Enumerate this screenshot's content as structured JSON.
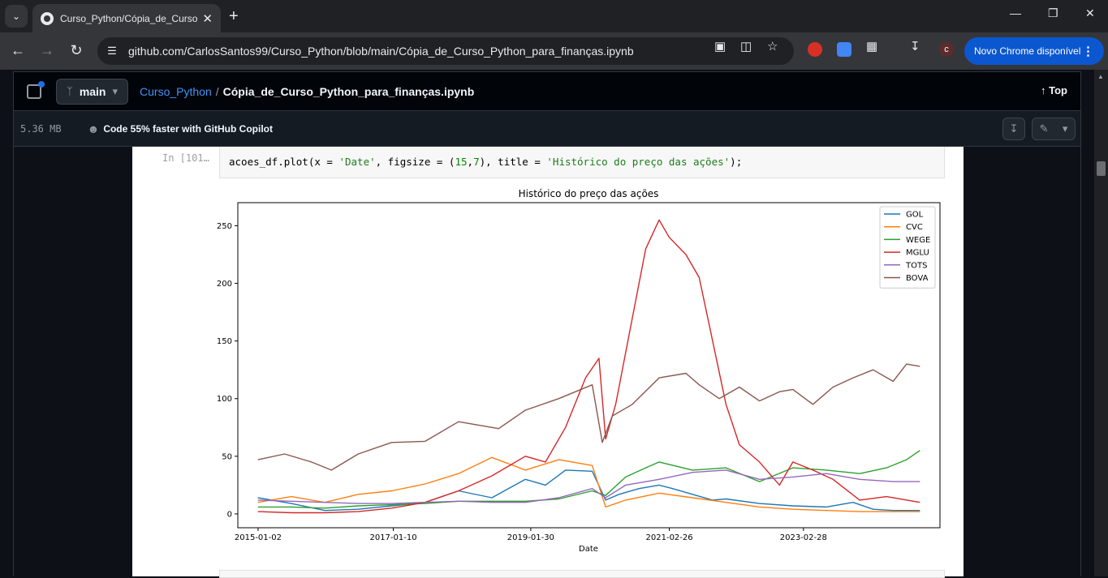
{
  "browser": {
    "tab_title": "Curso_Python/Cópia_de_Curso...",
    "url": "github.com/CarlosSantos99/Curso_Python/blob/main/Cópia_de_Curso_Python_para_finanças.ipynb",
    "update_button": "Novo Chrome disponível",
    "profile_initial": "c"
  },
  "github": {
    "branch": "main",
    "repo": "Curso_Python",
    "separator": "/",
    "filename": "Cópia_de_Curso_Python_para_finanças.ipynb",
    "top_label": "Top",
    "file_size": "5.36 MB",
    "copilot_promo": "Code 55% faster with GitHub Copilot"
  },
  "notebook": {
    "prompt": "In [101…",
    "code": {
      "part1": "acoes_df.plot(x = ",
      "str1": "'Date'",
      "part2": ", figsize = (",
      "num1": "15",
      "part3": ",",
      "num2": "7",
      "part4": "), title = ",
      "str2": "'Histórico do preço das ações'",
      "part5": ");"
    }
  },
  "chart_data": {
    "type": "line",
    "title": "Histórico do preço das ações",
    "xlabel": "Date",
    "ylabel": "",
    "xticks": [
      "2015-01-02",
      "2017-01-10",
      "2019-01-30",
      "2021-02-26",
      "2023-02-28"
    ],
    "yticks": [
      0,
      50,
      100,
      150,
      200,
      250
    ],
    "ylim": [
      -12,
      270
    ],
    "xlim": [
      2014.7,
      2025.2
    ],
    "legend_position": "top-right",
    "grid": false,
    "series": [
      {
        "name": "GOL",
        "color": "#1f77b4",
        "x": [
          2015.0,
          2015.5,
          2016.0,
          2016.5,
          2017.0,
          2017.5,
          2018.0,
          2018.5,
          2019.0,
          2019.3,
          2019.6,
          2020.0,
          2020.2,
          2020.4,
          2020.7,
          2021.0,
          2021.2,
          2021.5,
          2021.8,
          2022.0,
          2022.5,
          2023.0,
          2023.5,
          2023.9,
          2024.2,
          2024.5,
          2024.9
        ],
        "y": [
          14,
          9,
          3,
          4,
          7,
          10,
          20,
          14,
          30,
          25,
          38,
          37,
          12,
          17,
          22,
          25,
          22,
          17,
          12,
          13,
          9,
          7,
          6,
          10,
          4,
          3,
          3
        ]
      },
      {
        "name": "CVC",
        "color": "#ff7f0e",
        "x": [
          2015.0,
          2015.5,
          2016.0,
          2016.5,
          2017.0,
          2017.5,
          2018.0,
          2018.5,
          2019.0,
          2019.5,
          2020.0,
          2020.2,
          2020.5,
          2021.0,
          2021.5,
          2022.0,
          2022.5,
          2023.0,
          2023.5,
          2024.0,
          2024.5,
          2024.9
        ],
        "y": [
          10,
          15,
          10,
          17,
          20,
          26,
          35,
          49,
          38,
          47,
          42,
          6,
          12,
          18,
          14,
          10,
          6,
          4,
          3,
          2,
          2,
          2
        ]
      },
      {
        "name": "WEGE",
        "color": "#2ca02c",
        "x": [
          2015.0,
          2015.5,
          2016.0,
          2016.5,
          2017.0,
          2017.5,
          2018.0,
          2018.5,
          2019.0,
          2019.5,
          2020.0,
          2020.2,
          2020.5,
          2020.8,
          2021.0,
          2021.5,
          2022.0,
          2022.5,
          2023.0,
          2023.5,
          2024.0,
          2024.4,
          2024.7,
          2024.9
        ],
        "y": [
          6,
          6,
          5,
          7,
          8,
          9,
          11,
          11,
          11,
          13,
          20,
          16,
          32,
          40,
          45,
          38,
          40,
          28,
          40,
          38,
          35,
          40,
          47,
          55
        ]
      },
      {
        "name": "MGLU",
        "color": "#d62728",
        "x": [
          2015.0,
          2015.5,
          2016.0,
          2016.5,
          2017.0,
          2017.5,
          2018.0,
          2018.5,
          2019.0,
          2019.3,
          2019.6,
          2019.9,
          2020.1,
          2020.2,
          2020.35,
          2020.6,
          2020.8,
          2021.0,
          2021.15,
          2021.4,
          2021.6,
          2021.8,
          2022.0,
          2022.2,
          2022.5,
          2022.8,
          2023.0,
          2023.3,
          2023.6,
          2024.0,
          2024.4,
          2024.9
        ],
        "y": [
          2,
          1,
          1,
          2,
          5,
          10,
          20,
          33,
          50,
          45,
          75,
          118,
          135,
          65,
          95,
          170,
          230,
          255,
          240,
          225,
          205,
          150,
          95,
          60,
          45,
          25,
          45,
          38,
          30,
          12,
          15,
          10
        ]
      },
      {
        "name": "TOTS",
        "color": "#9467bd",
        "x": [
          2015.0,
          2015.5,
          2016.0,
          2016.5,
          2017.0,
          2017.5,
          2018.0,
          2018.5,
          2019.0,
          2019.5,
          2020.0,
          2020.2,
          2020.5,
          2021.0,
          2021.5,
          2022.0,
          2022.5,
          2023.0,
          2023.5,
          2024.0,
          2024.5,
          2024.9
        ],
        "y": [
          12,
          11,
          10,
          9,
          9,
          10,
          11,
          10,
          10,
          14,
          22,
          14,
          25,
          30,
          36,
          38,
          30,
          32,
          35,
          30,
          28,
          28
        ]
      },
      {
        "name": "BOVA",
        "color": "#8c564b",
        "x": [
          2015.0,
          2015.4,
          2015.8,
          2016.1,
          2016.5,
          2017.0,
          2017.5,
          2018.0,
          2018.3,
          2018.6,
          2019.0,
          2019.5,
          2020.0,
          2020.15,
          2020.3,
          2020.6,
          2021.0,
          2021.4,
          2021.6,
          2021.9,
          2022.2,
          2022.5,
          2022.8,
          2023.0,
          2023.3,
          2023.6,
          2023.9,
          2024.2,
          2024.5,
          2024.7,
          2024.9
        ],
        "y": [
          47,
          52,
          45,
          38,
          52,
          62,
          63,
          80,
          77,
          74,
          90,
          100,
          112,
          62,
          85,
          95,
          118,
          122,
          112,
          100,
          110,
          98,
          106,
          108,
          95,
          110,
          118,
          125,
          115,
          130,
          128
        ]
      }
    ]
  }
}
